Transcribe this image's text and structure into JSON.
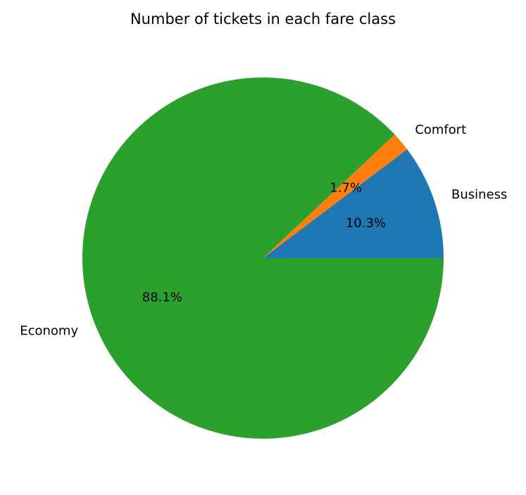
{
  "chart_data": {
    "type": "pie",
    "title": "Number of tickets in each fare class",
    "categories": [
      "Business",
      "Comfort",
      "Economy"
    ],
    "values": [
      10.3,
      1.7,
      88.1
    ],
    "percent_labels": [
      "10.3%",
      "1.7%",
      "88.1%"
    ],
    "colors": [
      "#1f77b4",
      "#ff7f0e",
      "#2ca02c"
    ],
    "start_angle_deg": 0,
    "direction": "counterclockwise"
  }
}
